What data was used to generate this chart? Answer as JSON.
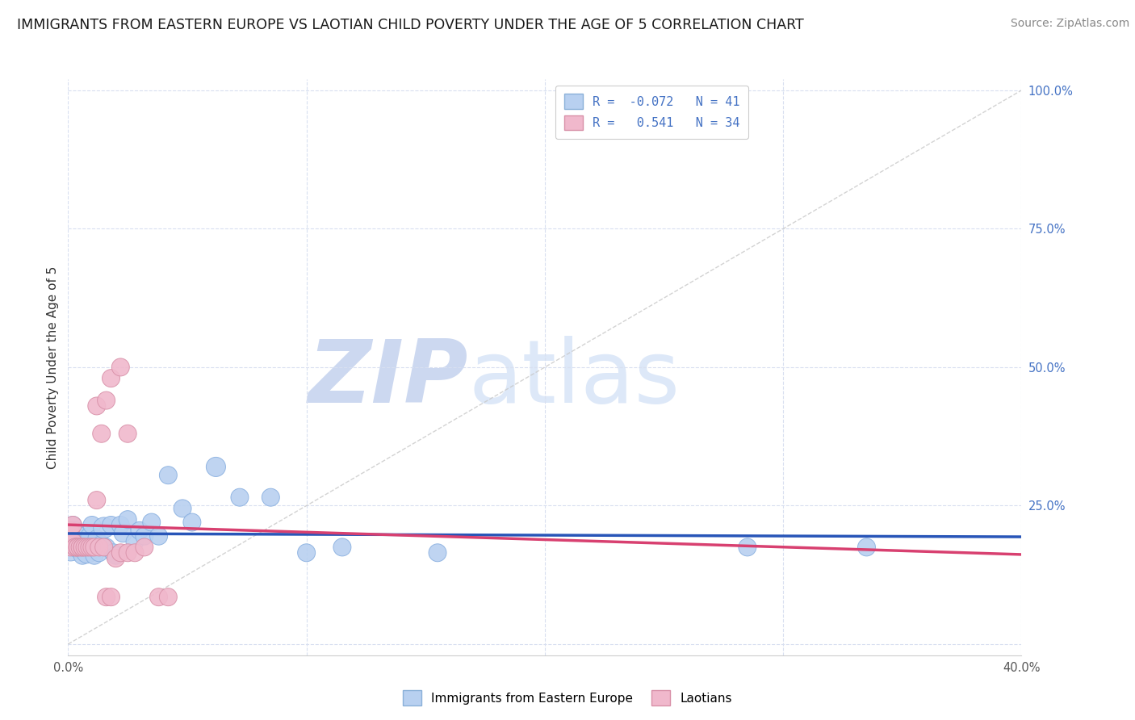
{
  "title": "IMMIGRANTS FROM EASTERN EUROPE VS LAOTIAN CHILD POVERTY UNDER THE AGE OF 5 CORRELATION CHART",
  "source": "Source: ZipAtlas.com",
  "ylabel": "Child Poverty Under the Age of 5",
  "watermark_zip": "ZIP",
  "watermark_atlas": "atlas",
  "legend_entries": [
    {
      "label": "Immigrants from Eastern Europe",
      "color": "#b8d0f0",
      "edge": "#8ab0e0",
      "R": -0.072,
      "N": 41
    },
    {
      "label": "Laotians",
      "color": "#f0b8cc",
      "edge": "#d890a8",
      "R": 0.541,
      "N": 34
    }
  ],
  "blue_scatter_x": [
    0.001,
    0.002,
    0.002,
    0.003,
    0.003,
    0.004,
    0.005,
    0.005,
    0.006,
    0.007,
    0.008,
    0.009,
    0.01,
    0.011,
    0.012,
    0.013,
    0.014,
    0.015,
    0.016,
    0.018,
    0.019,
    0.02,
    0.022,
    0.023,
    0.025,
    0.028,
    0.03,
    0.032,
    0.035,
    0.038,
    0.042,
    0.048,
    0.052,
    0.062,
    0.072,
    0.085,
    0.1,
    0.115,
    0.155,
    0.285,
    0.335
  ],
  "blue_scatter_y": [
    0.175,
    0.195,
    0.215,
    0.175,
    0.205,
    0.175,
    0.18,
    0.195,
    0.16,
    0.175,
    0.165,
    0.195,
    0.215,
    0.16,
    0.19,
    0.165,
    0.18,
    0.21,
    0.175,
    0.215,
    0.165,
    0.16,
    0.215,
    0.2,
    0.225,
    0.185,
    0.205,
    0.195,
    0.22,
    0.195,
    0.305,
    0.245,
    0.22,
    0.32,
    0.265,
    0.265,
    0.165,
    0.175,
    0.165,
    0.175,
    0.175
  ],
  "blue_scatter_s": [
    600,
    250,
    250,
    250,
    250,
    350,
    250,
    250,
    250,
    250,
    350,
    250,
    250,
    250,
    250,
    250,
    250,
    350,
    250,
    250,
    250,
    250,
    250,
    250,
    250,
    250,
    250,
    250,
    250,
    250,
    250,
    250,
    250,
    300,
    250,
    250,
    250,
    250,
    250,
    250,
    250
  ],
  "pink_scatter_x": [
    0.001,
    0.001,
    0.002,
    0.002,
    0.003,
    0.003,
    0.004,
    0.004,
    0.005,
    0.006,
    0.006,
    0.007,
    0.008,
    0.009,
    0.01,
    0.011,
    0.012,
    0.013,
    0.015,
    0.016,
    0.018,
    0.02,
    0.022,
    0.025,
    0.012,
    0.014,
    0.016,
    0.018,
    0.022,
    0.025,
    0.028,
    0.032,
    0.038,
    0.042
  ],
  "pink_scatter_y": [
    0.175,
    0.205,
    0.215,
    0.185,
    0.175,
    0.175,
    0.175,
    0.175,
    0.175,
    0.175,
    0.175,
    0.175,
    0.175,
    0.175,
    0.175,
    0.175,
    0.26,
    0.175,
    0.175,
    0.085,
    0.085,
    0.155,
    0.165,
    0.165,
    0.43,
    0.38,
    0.44,
    0.48,
    0.5,
    0.38,
    0.165,
    0.175,
    0.085,
    0.085
  ],
  "pink_scatter_s": [
    250,
    250,
    250,
    250,
    250,
    250,
    250,
    250,
    250,
    250,
    250,
    250,
    250,
    250,
    250,
    250,
    250,
    250,
    250,
    250,
    250,
    250,
    250,
    250,
    250,
    250,
    250,
    250,
    250,
    250,
    250,
    250,
    250,
    250
  ],
  "xlim": [
    0.0,
    0.4
  ],
  "ylim": [
    -0.02,
    1.02
  ],
  "yticks": [
    0.0,
    0.25,
    0.5,
    0.75,
    1.0
  ],
  "ytick_labels": [
    "",
    "25.0%",
    "50.0%",
    "75.0%",
    "100.0%"
  ],
  "xticks": [
    0.0,
    0.1,
    0.2,
    0.3,
    0.4
  ],
  "xtick_labels": [
    "0.0%",
    "",
    "",
    "",
    "40.0%"
  ],
  "bg_color": "#ffffff",
  "grid_color": "#d8dff0",
  "blue_line_color": "#2855b8",
  "pink_line_color": "#d84070",
  "diagonal_color": "#c8c8c8",
  "watermark_color": "#ccd8f0",
  "title_fontsize": 12.5,
  "axis_label_fontsize": 11,
  "tick_fontsize": 10.5,
  "source_fontsize": 10,
  "legend_fontsize": 11
}
